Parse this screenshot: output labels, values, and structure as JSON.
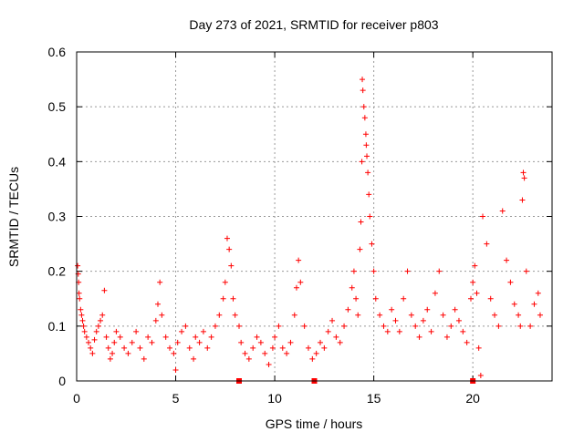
{
  "chart_data": {
    "type": "scatter",
    "title": "Day 273 of 2021, SRMTID for receiver p803",
    "xlabel": "GPS time / hours",
    "ylabel": "SRMTID / TECUs",
    "xlim": [
      0,
      24
    ],
    "ylim": [
      0,
      0.6
    ],
    "xticks": [
      0,
      5,
      10,
      15,
      20
    ],
    "xtick_labels": [
      "0",
      "5",
      "10",
      "15",
      "20"
    ],
    "yticks": [
      0,
      0.1,
      0.2,
      0.3,
      0.4,
      0.5,
      0.6
    ],
    "ytick_labels": [
      "0",
      "0.1",
      "0.2",
      "0.3",
      "0.4",
      "0.5",
      "0.6"
    ],
    "grid": true,
    "marker": "plus",
    "color": "#ff0000",
    "series": [
      {
        "name": "SRMTID",
        "points": [
          [
            0.05,
            0.21
          ],
          [
            0.08,
            0.195
          ],
          [
            0.1,
            0.18
          ],
          [
            0.12,
            0.16
          ],
          [
            0.15,
            0.15
          ],
          [
            0.2,
            0.13
          ],
          [
            0.25,
            0.12
          ],
          [
            0.3,
            0.11
          ],
          [
            0.35,
            0.1
          ],
          [
            0.4,
            0.09
          ],
          [
            0.5,
            0.08
          ],
          [
            0.6,
            0.07
          ],
          [
            0.7,
            0.06
          ],
          [
            0.8,
            0.05
          ],
          [
            0.9,
            0.075
          ],
          [
            1.0,
            0.09
          ],
          [
            1.1,
            0.1
          ],
          [
            1.2,
            0.11
          ],
          [
            1.3,
            0.12
          ],
          [
            1.4,
            0.165
          ],
          [
            1.5,
            0.08
          ],
          [
            1.6,
            0.06
          ],
          [
            1.7,
            0.04
          ],
          [
            1.8,
            0.05
          ],
          [
            1.9,
            0.07
          ],
          [
            2.0,
            0.09
          ],
          [
            2.2,
            0.08
          ],
          [
            2.4,
            0.06
          ],
          [
            2.6,
            0.05
          ],
          [
            2.8,
            0.07
          ],
          [
            3.0,
            0.09
          ],
          [
            3.2,
            0.06
          ],
          [
            3.4,
            0.04
          ],
          [
            3.6,
            0.08
          ],
          [
            3.8,
            0.07
          ],
          [
            4.0,
            0.11
          ],
          [
            4.1,
            0.14
          ],
          [
            4.2,
            0.18
          ],
          [
            4.3,
            0.12
          ],
          [
            4.5,
            0.08
          ],
          [
            4.7,
            0.06
          ],
          [
            4.9,
            0.05
          ],
          [
            5.0,
            0.02
          ],
          [
            5.1,
            0.07
          ],
          [
            5.3,
            0.09
          ],
          [
            5.5,
            0.1
          ],
          [
            5.7,
            0.06
          ],
          [
            5.9,
            0.04
          ],
          [
            6.0,
            0.08
          ],
          [
            6.2,
            0.07
          ],
          [
            6.4,
            0.09
          ],
          [
            6.6,
            0.06
          ],
          [
            6.8,
            0.08
          ],
          [
            7.0,
            0.1
          ],
          [
            7.2,
            0.12
          ],
          [
            7.4,
            0.15
          ],
          [
            7.5,
            0.18
          ],
          [
            7.6,
            0.26
          ],
          [
            7.7,
            0.24
          ],
          [
            7.8,
            0.21
          ],
          [
            7.9,
            0.15
          ],
          [
            8.0,
            0.12
          ],
          [
            8.2,
            0.1
          ],
          [
            8.3,
            0.07
          ],
          [
            8.5,
            0.05
          ],
          [
            8.7,
            0.04
          ],
          [
            8.9,
            0.06
          ],
          [
            9.1,
            0.08
          ],
          [
            9.3,
            0.07
          ],
          [
            9.5,
            0.05
          ],
          [
            9.7,
            0.03
          ],
          [
            9.9,
            0.06
          ],
          [
            10.0,
            0.08
          ],
          [
            10.2,
            0.1
          ],
          [
            10.4,
            0.06
          ],
          [
            10.6,
            0.05
          ],
          [
            10.8,
            0.07
          ],
          [
            11.0,
            0.12
          ],
          [
            11.1,
            0.17
          ],
          [
            11.2,
            0.22
          ],
          [
            11.3,
            0.18
          ],
          [
            11.5,
            0.1
          ],
          [
            11.7,
            0.06
          ],
          [
            11.9,
            0.04
          ],
          [
            12.1,
            0.05
          ],
          [
            12.3,
            0.07
          ],
          [
            12.5,
            0.06
          ],
          [
            12.7,
            0.09
          ],
          [
            12.9,
            0.11
          ],
          [
            13.1,
            0.08
          ],
          [
            13.3,
            0.07
          ],
          [
            13.5,
            0.1
          ],
          [
            13.7,
            0.13
          ],
          [
            13.9,
            0.17
          ],
          [
            14.0,
            0.2
          ],
          [
            14.1,
            0.15
          ],
          [
            14.2,
            0.12
          ],
          [
            14.3,
            0.24
          ],
          [
            14.35,
            0.29
          ],
          [
            14.4,
            0.4
          ],
          [
            14.42,
            0.55
          ],
          [
            14.45,
            0.53
          ],
          [
            14.5,
            0.5
          ],
          [
            14.55,
            0.48
          ],
          [
            14.6,
            0.45
          ],
          [
            14.62,
            0.43
          ],
          [
            14.65,
            0.41
          ],
          [
            14.7,
            0.38
          ],
          [
            14.75,
            0.34
          ],
          [
            14.8,
            0.3
          ],
          [
            14.9,
            0.25
          ],
          [
            15.0,
            0.2
          ],
          [
            15.1,
            0.15
          ],
          [
            15.3,
            0.12
          ],
          [
            15.5,
            0.1
          ],
          [
            15.7,
            0.09
          ],
          [
            15.9,
            0.13
          ],
          [
            16.1,
            0.11
          ],
          [
            16.3,
            0.09
          ],
          [
            16.5,
            0.15
          ],
          [
            16.7,
            0.2
          ],
          [
            16.9,
            0.12
          ],
          [
            17.1,
            0.1
          ],
          [
            17.3,
            0.08
          ],
          [
            17.5,
            0.11
          ],
          [
            17.7,
            0.13
          ],
          [
            17.9,
            0.09
          ],
          [
            18.1,
            0.16
          ],
          [
            18.3,
            0.2
          ],
          [
            18.5,
            0.12
          ],
          [
            18.7,
            0.08
          ],
          [
            18.9,
            0.1
          ],
          [
            19.1,
            0.13
          ],
          [
            19.3,
            0.11
          ],
          [
            19.5,
            0.09
          ],
          [
            19.7,
            0.07
          ],
          [
            19.9,
            0.15
          ],
          [
            20.0,
            0.18
          ],
          [
            20.1,
            0.21
          ],
          [
            20.2,
            0.16
          ],
          [
            20.3,
            0.06
          ],
          [
            20.4,
            0.01
          ],
          [
            20.5,
            0.3
          ],
          [
            20.7,
            0.25
          ],
          [
            20.9,
            0.15
          ],
          [
            21.1,
            0.12
          ],
          [
            21.3,
            0.1
          ],
          [
            21.5,
            0.31
          ],
          [
            21.7,
            0.22
          ],
          [
            21.9,
            0.18
          ],
          [
            22.1,
            0.14
          ],
          [
            22.3,
            0.12
          ],
          [
            22.4,
            0.1
          ],
          [
            22.5,
            0.33
          ],
          [
            22.55,
            0.38
          ],
          [
            22.6,
            0.37
          ],
          [
            22.7,
            0.2
          ],
          [
            22.9,
            0.1
          ],
          [
            23.1,
            0.14
          ],
          [
            23.3,
            0.16
          ],
          [
            23.4,
            0.12
          ]
        ]
      }
    ],
    "axis_markers_x": [
      8.2,
      12.0,
      20.0
    ]
  }
}
